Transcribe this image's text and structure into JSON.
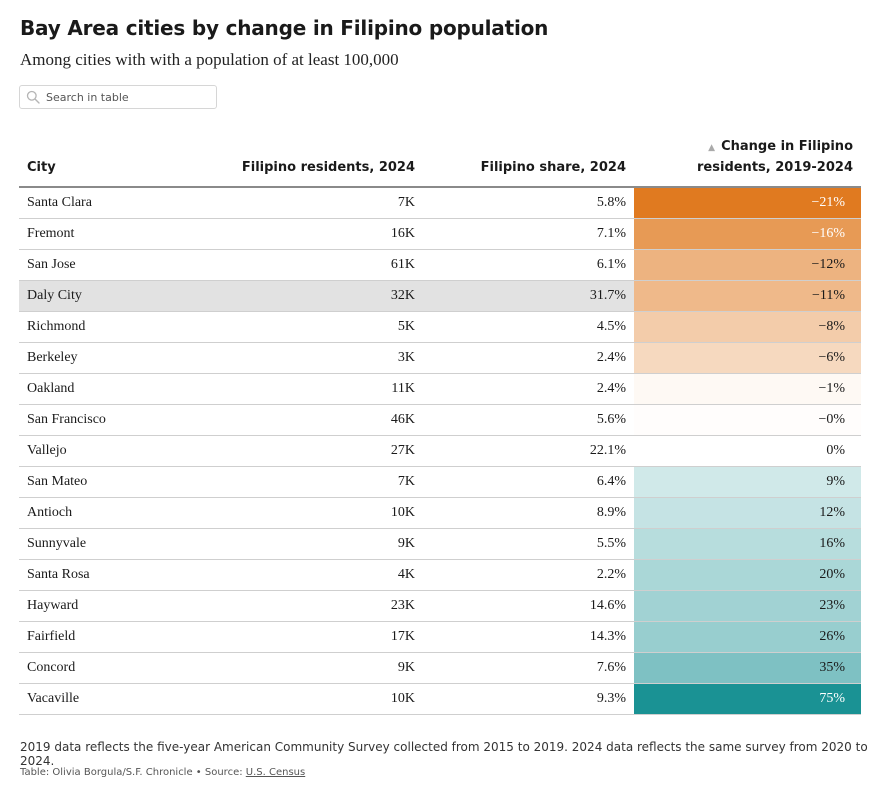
{
  "title": "Bay Area cities by change in Filipino population",
  "subtitle": "Among cities with with a population of at least 100,000",
  "search": {
    "placeholder": "Search in table",
    "icon": "search-icon"
  },
  "columns": {
    "city": "City",
    "residents": "Filipino residents, 2024",
    "share": "Filipino share, 2024",
    "change_line1": "Change in Filipino",
    "change_line2": "residents, 2019-2024",
    "sort_icon": "sort-ascending-icon"
  },
  "colors": {
    "negative_max": "#e07a20",
    "neutral": "#ffffff",
    "positive_max": "#1a9294",
    "highlight_row": "#e2e2e2",
    "text_on_dark": "#ffffff"
  },
  "chart_data": {
    "type": "table",
    "title": "Bay Area cities by change in Filipino population",
    "subtitle": "Among cities with with a population of at least 100,000",
    "columns": [
      "City",
      "Filipino residents, 2024",
      "Filipino share, 2024",
      "Change in Filipino residents, 2019-2024"
    ],
    "rows": [
      {
        "city": "Santa Clara",
        "residents": "7K",
        "share": "5.8%",
        "change": "−21%",
        "change_value": -21
      },
      {
        "city": "Fremont",
        "residents": "16K",
        "share": "7.1%",
        "change": "−16%",
        "change_value": -16
      },
      {
        "city": "San Jose",
        "residents": "61K",
        "share": "6.1%",
        "change": "−12%",
        "change_value": -12
      },
      {
        "city": "Daly City",
        "residents": "32K",
        "share": "31.7%",
        "change": "−11%",
        "change_value": -11,
        "highlighted": true
      },
      {
        "city": "Richmond",
        "residents": "5K",
        "share": "4.5%",
        "change": "−8%",
        "change_value": -8
      },
      {
        "city": "Berkeley",
        "residents": "3K",
        "share": "2.4%",
        "change": "−6%",
        "change_value": -6
      },
      {
        "city": "Oakland",
        "residents": "11K",
        "share": "2.4%",
        "change": "−1%",
        "change_value": -1
      },
      {
        "city": "San Francisco",
        "residents": "46K",
        "share": "5.6%",
        "change": "−0%",
        "change_value": -0.3
      },
      {
        "city": "Vallejo",
        "residents": "27K",
        "share": "22.1%",
        "change": "0%",
        "change_value": 0
      },
      {
        "city": "San Mateo",
        "residents": "7K",
        "share": "6.4%",
        "change": "9%",
        "change_value": 9
      },
      {
        "city": "Antioch",
        "residents": "10K",
        "share": "8.9%",
        "change": "12%",
        "change_value": 12
      },
      {
        "city": "Sunnyvale",
        "residents": "9K",
        "share": "5.5%",
        "change": "16%",
        "change_value": 16
      },
      {
        "city": "Santa Rosa",
        "residents": "4K",
        "share": "2.2%",
        "change": "20%",
        "change_value": 20
      },
      {
        "city": "Hayward",
        "residents": "23K",
        "share": "14.6%",
        "change": "23%",
        "change_value": 23
      },
      {
        "city": "Fairfield",
        "residents": "17K",
        "share": "14.3%",
        "change": "26%",
        "change_value": 26
      },
      {
        "city": "Concord",
        "residents": "9K",
        "share": "7.6%",
        "change": "35%",
        "change_value": 35
      },
      {
        "city": "Vacaville",
        "residents": "10K",
        "share": "9.3%",
        "change": "75%",
        "change_value": 75
      }
    ]
  },
  "footer": {
    "note": "2019 data reflects the five-year American Community Survey collected from 2015 to 2019. 2024 data reflects the same survey from 2020 to 2024.",
    "credit_prefix": "Table: Olivia Borgula/S.F. Chronicle • Source: ",
    "source_link": "U.S. Census"
  }
}
